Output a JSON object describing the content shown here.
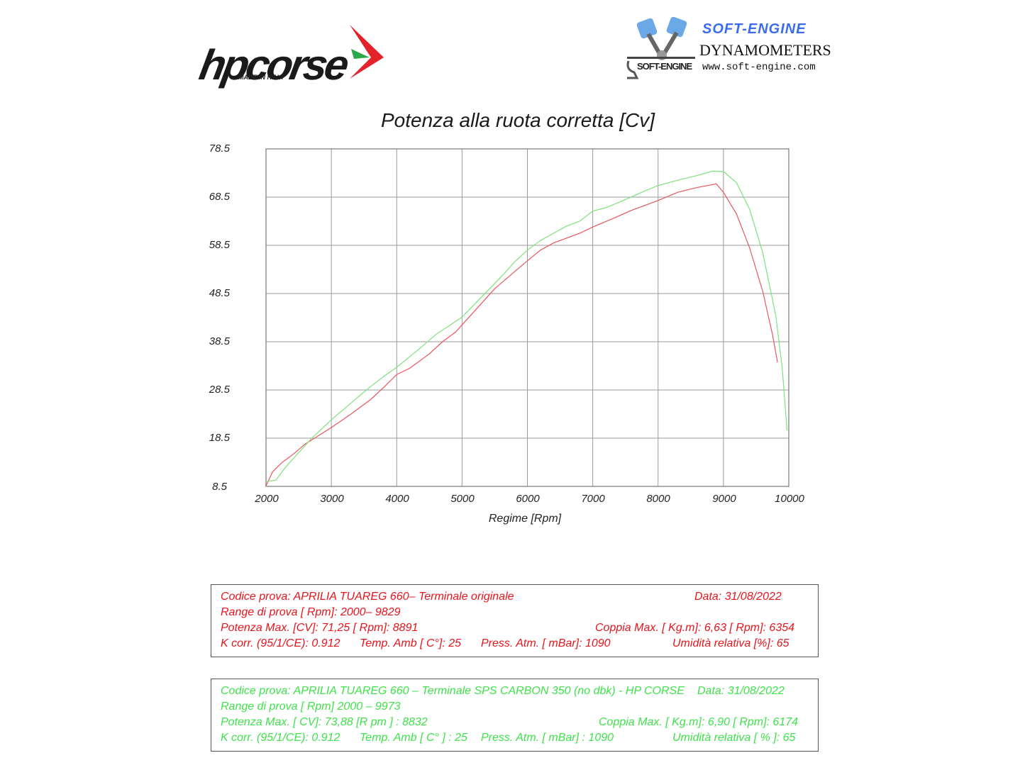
{
  "header": {
    "left_logo": {
      "brand": "hpcorse",
      "tagline": "MADE IN ITALY"
    },
    "right_logo": {
      "brand": "SOFT-ENGINE",
      "subtitle": "DYNAMOMETERS",
      "url": "www.soft-engine.com",
      "mark": "SOFT-ENGINE"
    }
  },
  "chart_data": {
    "type": "line",
    "title": "Potenza alla ruota corretta [Cv]",
    "xlabel": "Regime [Rpm]",
    "ylabel": "",
    "xlim": [
      2000,
      10000
    ],
    "ylim": [
      8.5,
      78.5
    ],
    "x_ticks": [
      "2000",
      "3000",
      "4000",
      "5000",
      "6000",
      "7000",
      "8000",
      "9000",
      "10000"
    ],
    "y_ticks": [
      "78.5",
      "68.5",
      "58.5",
      "48.5",
      "38.5",
      "28.5",
      "18.5",
      "8.5"
    ],
    "grid": true,
    "legend": "none (info boxes below chart identify series by color)",
    "series": [
      {
        "name": "APRILIA TUAREG 660 - Terminale originale",
        "color": "#e8575e",
        "x": [
          2000,
          2100,
          2250,
          2400,
          2600,
          2800,
          3000,
          3300,
          3600,
          3800,
          4000,
          4200,
          4400,
          4500,
          4700,
          4900,
          5000,
          5200,
          5500,
          5800,
          6000,
          6200,
          6400,
          6600,
          6800,
          7000,
          7300,
          7600,
          8000,
          8300,
          8600,
          8891,
          9000,
          9200,
          9400,
          9600,
          9750,
          9829
        ],
        "values": [
          8.6,
          11.5,
          13.5,
          15.0,
          17.3,
          19.0,
          20.7,
          23.5,
          26.5,
          29.0,
          31.7,
          33.0,
          35.0,
          36.0,
          38.5,
          40.5,
          42.0,
          45.0,
          49.5,
          53.0,
          55.3,
          57.5,
          59.0,
          60.0,
          61.0,
          62.3,
          64.0,
          65.8,
          67.8,
          69.5,
          70.5,
          71.25,
          69.5,
          65.0,
          58.0,
          49.0,
          40.0,
          34.2
        ]
      },
      {
        "name": "APRILIA TUAREG 660 - Terminale SPS CARBON 350 (no dbk) - HP CORSE",
        "color": "#7ee27a",
        "x": [
          2000,
          2150,
          2300,
          2500,
          2700,
          3000,
          3300,
          3600,
          3800,
          4000,
          4300,
          4600,
          4800,
          5000,
          5300,
          5600,
          5800,
          6000,
          6200,
          6400,
          6600,
          6800,
          7000,
          7200,
          7500,
          7800,
          8000,
          8300,
          8600,
          8832,
          9000,
          9200,
          9400,
          9600,
          9800,
          9900,
          9973
        ],
        "values": [
          9.5,
          9.8,
          12.5,
          15.5,
          18.5,
          22.3,
          25.8,
          29.2,
          31.3,
          33.2,
          36.5,
          40.0,
          41.8,
          43.6,
          47.8,
          52.0,
          55.0,
          57.5,
          59.5,
          61.0,
          62.5,
          63.5,
          65.6,
          66.3,
          68.0,
          69.8,
          70.9,
          72.0,
          73.0,
          73.88,
          73.8,
          71.5,
          66.0,
          57.0,
          44.0,
          33.0,
          20.1
        ]
      }
    ]
  },
  "info_boxes": [
    {
      "color": "#e8141c",
      "codice": "Codice prova: APRILIA TUAREG 660– Terminale originale",
      "data": "Data: 31/08/2022",
      "range": "Range di prova  [ Rpm]: 2000– 9829",
      "potenza": "Potenza Max. [CV]:  71,25  [ Rpm]: 8891",
      "coppia": "Coppia Max. [ Kg.m]:  6,63 [ Rpm]: 6354",
      "kcorr": "K corr. (95/1/CE): 0.912",
      "temp": "Temp. Amb  [ C°]: 25",
      "press": "Press. Atm.  [ mBar]: 1090",
      "umidita": "Umidità relativa [%]: 65"
    },
    {
      "color": "#3ee24a",
      "codice": "Codice prova: APRILIA TUAREG 660 – Terminale SPS CARBON 350  (no dbk) - HP CORSE",
      "data": "Data: 31/08/2022",
      "range": "Range di prova [ Rpm] 2000 – 9973",
      "potenza": "Potenza Max. [ CV]:  73,88    [R pm ] : 8832",
      "coppia": "Coppia Max.  [ Kg.m]:  6,90  [ Rpm]: 6174",
      "kcorr": "K corr. (95/1/CE): 0.912",
      "temp": "Temp. Amb [ C° ] : 25",
      "press": "Press. Atm. [ mBar] : 1090",
      "umidita": "Umidità relativa [ % ]: 65"
    }
  ]
}
